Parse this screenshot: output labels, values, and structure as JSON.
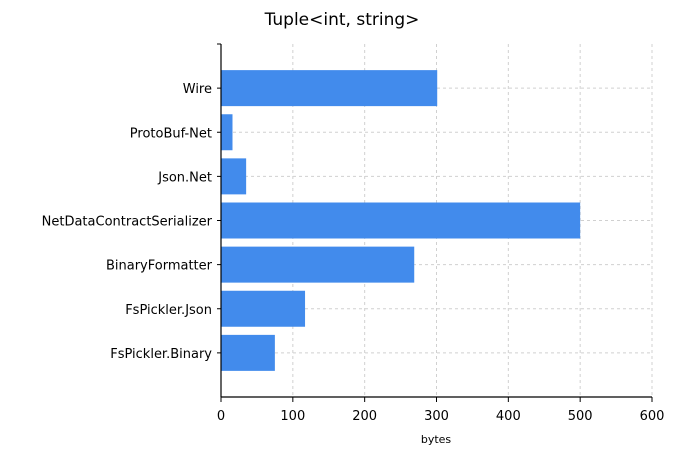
{
  "chart_data": {
    "type": "bar",
    "orientation": "horizontal",
    "title": "Tuple<int, string>",
    "xlabel": "bytes",
    "ylabel": "",
    "categories": [
      "Wire",
      "ProtoBuf-Net",
      "Json.Net",
      "NetDataContractSerializer",
      "BinaryFormatter",
      "FsPickler.Json",
      "FsPickler.Binary"
    ],
    "values": [
      301,
      16,
      35,
      500,
      269,
      117,
      75
    ],
    "xlim": [
      0,
      600
    ],
    "xticks": [
      "0",
      "100",
      "200",
      "300",
      "400",
      "500",
      "600"
    ],
    "grid": true,
    "bar_color": "#428bec"
  }
}
